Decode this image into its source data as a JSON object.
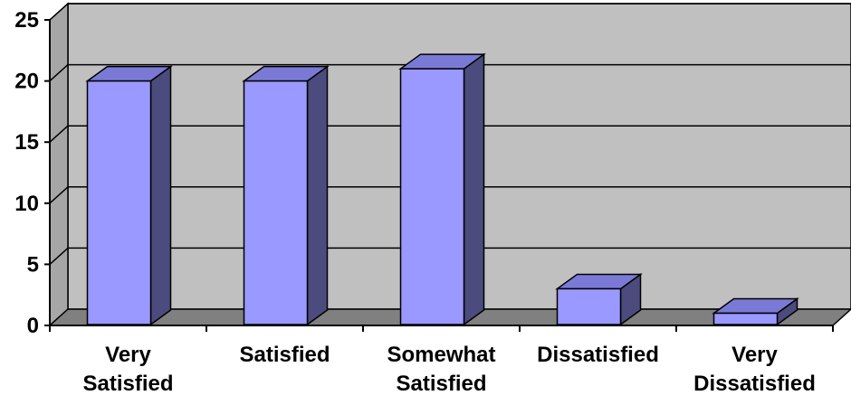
{
  "chart_data": {
    "type": "bar",
    "style": "3d-column",
    "categories": [
      [
        "Very",
        "Satisfied"
      ],
      [
        "Satisfied"
      ],
      [
        "Somewhat",
        "Satisfied"
      ],
      [
        "Dissatisfied"
      ],
      [
        "Very",
        "Dissatisfied"
      ]
    ],
    "values": [
      20,
      20,
      21,
      3,
      1
    ],
    "ylim": [
      0,
      25
    ],
    "yticks": [
      "0",
      "5",
      "10",
      "15",
      "20",
      "25"
    ],
    "grid": true,
    "legend": "none"
  },
  "colors": {
    "bar_front": "#9999ff",
    "bar_top": "#7a7ad6",
    "bar_side": "#4b4b7d",
    "plot_wall": "#c0c0c0",
    "floor": "#808080",
    "side_wall": "#a6a6a6"
  }
}
